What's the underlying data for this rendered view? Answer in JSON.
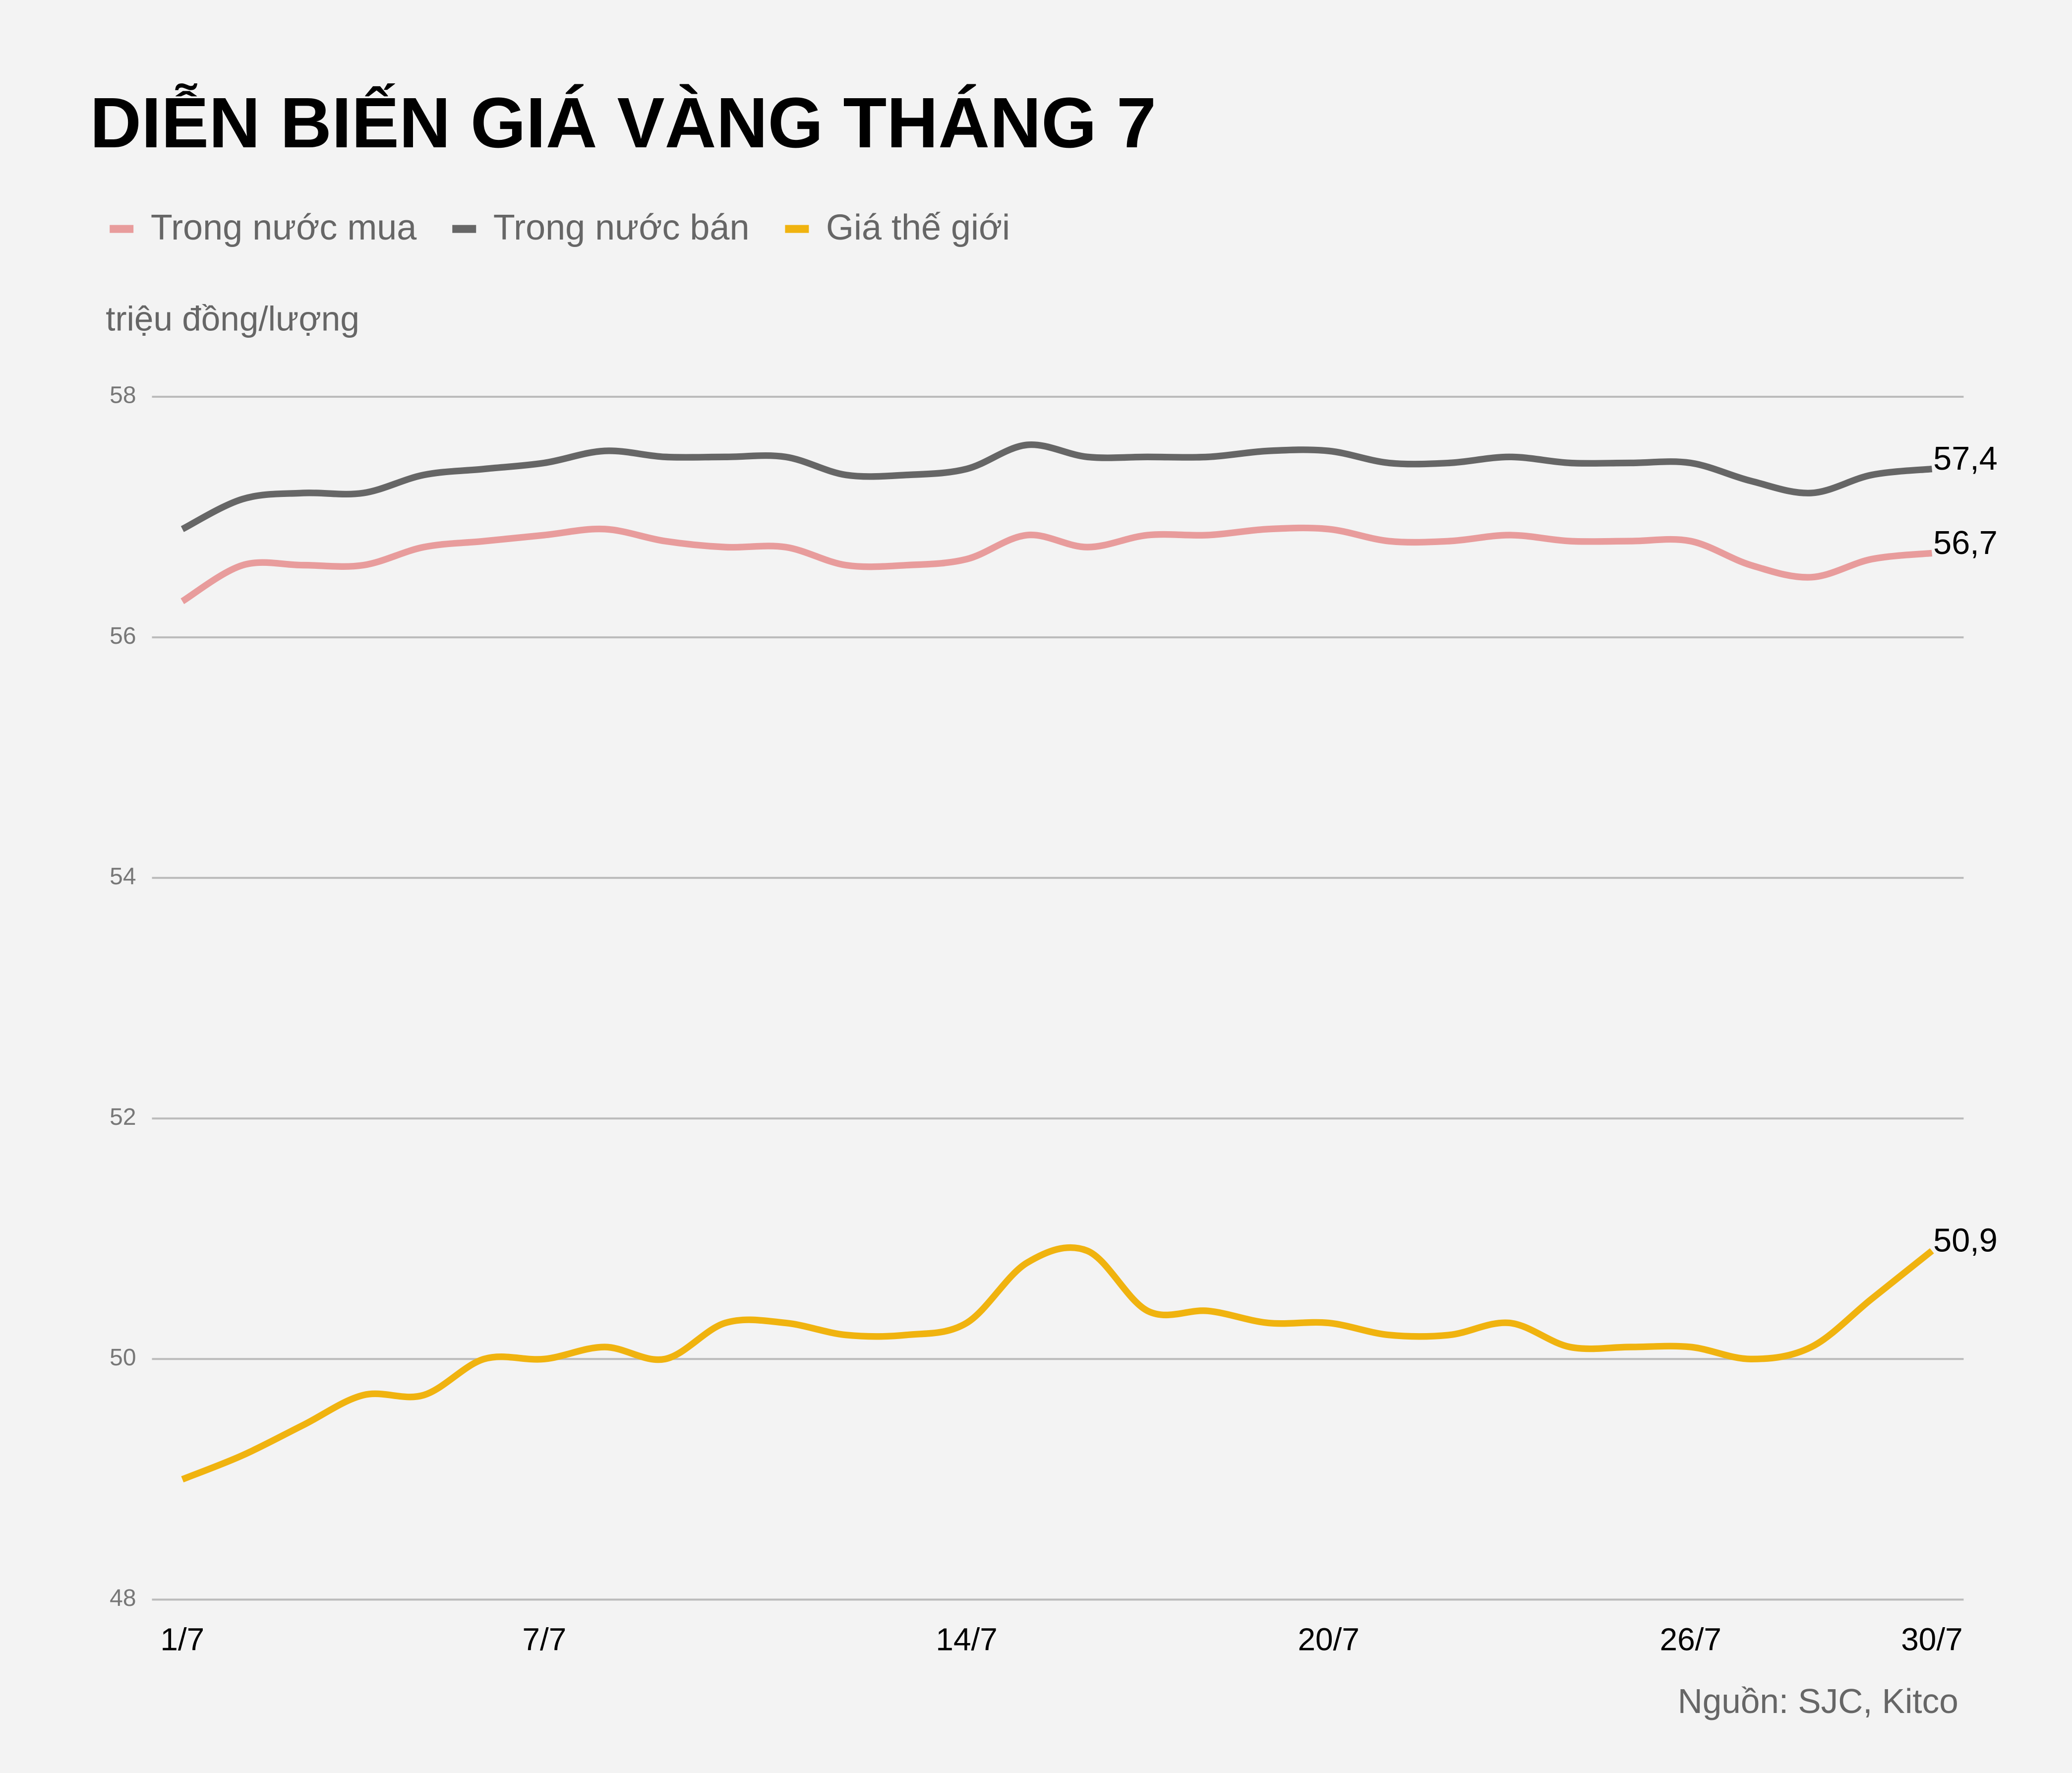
{
  "chart_data": {
    "type": "line",
    "title": "DIỄN BIẾN GIÁ VÀNG THÁNG 7",
    "y_label": "triệu đồng/lượng",
    "source": "Nguồn: SJC, Kitco",
    "categories": [
      "1/7",
      null,
      null,
      null,
      null,
      null,
      "7/7",
      null,
      null,
      null,
      null,
      null,
      null,
      "14/7",
      null,
      null,
      null,
      null,
      null,
      "20/7",
      null,
      null,
      null,
      null,
      null,
      "26/7",
      null,
      null,
      null,
      "30/7"
    ],
    "ylim": [
      48,
      58
    ],
    "yticks": [
      48,
      50,
      52,
      54,
      56,
      58
    ],
    "grid": true,
    "series": [
      {
        "name": "Trong nước mua",
        "color": "#e89c9c",
        "values": [
          56.3,
          56.6,
          56.6,
          56.6,
          56.75,
          56.8,
          56.85,
          56.9,
          56.8,
          56.75,
          56.75,
          56.6,
          56.6,
          56.65,
          56.85,
          56.75,
          56.85,
          56.85,
          56.9,
          56.9,
          56.8,
          56.8,
          56.85,
          56.8,
          56.8,
          56.8,
          56.6,
          56.5,
          56.65,
          56.7
        ],
        "value_labels": [
          null,
          null,
          null,
          null,
          null,
          null,
          null,
          null,
          null,
          null,
          null,
          null,
          null,
          null,
          null,
          null,
          null,
          null,
          null,
          null,
          null,
          null,
          null,
          null,
          null,
          null,
          null,
          null,
          null,
          "56,7"
        ]
      },
      {
        "name": "Trong nước bán",
        "color": "#666666",
        "values": [
          56.9,
          57.15,
          57.2,
          57.2,
          57.35,
          57.4,
          57.45,
          57.55,
          57.5,
          57.5,
          57.5,
          57.35,
          57.35,
          57.4,
          57.6,
          57.5,
          57.5,
          57.5,
          57.55,
          57.55,
          57.45,
          57.45,
          57.5,
          57.45,
          57.45,
          57.45,
          57.3,
          57.2,
          57.35,
          57.4
        ],
        "value_labels": [
          null,
          null,
          null,
          null,
          null,
          null,
          null,
          null,
          null,
          null,
          null,
          null,
          null,
          null,
          null,
          null,
          null,
          null,
          null,
          null,
          null,
          null,
          null,
          null,
          null,
          null,
          null,
          null,
          null,
          "57,4"
        ]
      },
      {
        "name": "Giá thế giới",
        "color": "#f0b30f",
        "values": [
          49.0,
          49.2,
          49.45,
          49.7,
          49.7,
          50.0,
          50.0,
          50.1,
          50.0,
          50.3,
          50.3,
          50.2,
          50.2,
          50.3,
          50.8,
          50.9,
          50.4,
          50.4,
          50.3,
          50.3,
          50.2,
          50.2,
          50.3,
          50.1,
          50.1,
          50.1,
          50.0,
          50.1,
          50.5,
          50.9
        ],
        "value_labels": [
          null,
          null,
          null,
          null,
          null,
          null,
          null,
          null,
          null,
          null,
          null,
          null,
          null,
          null,
          null,
          null,
          null,
          null,
          null,
          null,
          null,
          null,
          null,
          null,
          null,
          null,
          null,
          null,
          null,
          "50,9"
        ]
      }
    ]
  }
}
